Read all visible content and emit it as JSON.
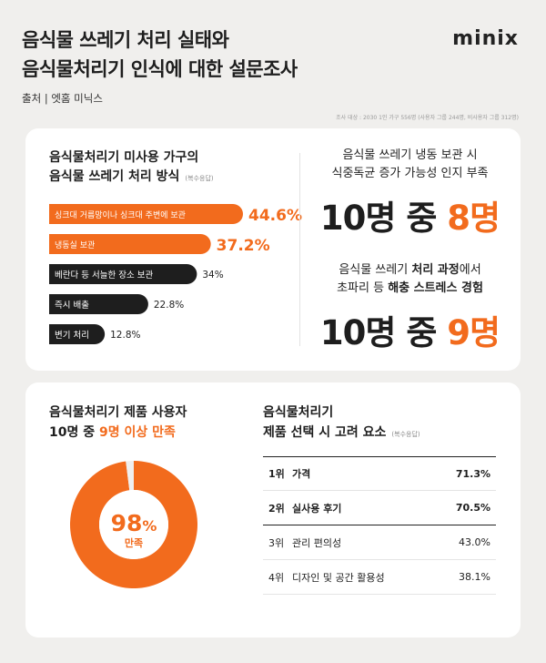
{
  "header": {
    "title_line1": "음식물 쓰레기 처리 실태와",
    "title_line2": "음식물처리기 인식에 대한 설문조사",
    "logo": "minix",
    "source": "출처 | 엣홈 미닉스",
    "note": "조사 대상 : 2030 1인 가구 556명 (사용자 그룹 244명, 비사용자 그룹 312명)"
  },
  "card1": {
    "title_line1": "음식물처리기 미사용 가구의",
    "title_line2": "음식물 쓰레기 처리 방식",
    "tag": "(복수응답)",
    "stat1": {
      "line1": "음식물 쓰레기 냉동 보관 시",
      "line2": "식중독균 증가 가능성 인지 부족",
      "big_a": "10명 중 ",
      "big_b": "8명"
    },
    "stat2": {
      "line1_a": "음식물 쓰레기 ",
      "line1_b": "처리 과정",
      "line1_c": "에서",
      "line2_a": "초파리 등 ",
      "line2_b": "해충 스트레스 경험",
      "big_a": "10명 중 ",
      "big_b": "9명"
    }
  },
  "card2": {
    "left_title_line1": "음식물처리기 제품 사용자",
    "left_title_a": "10명 중 ",
    "left_title_b": "9명 이상 만족",
    "right_title_line1": "음식물처리기",
    "right_title_line2": "제품 선택 시 고려 요소",
    "right_tag": "(복수응답)"
  },
  "chart_data": [
    {
      "type": "bar",
      "orientation": "horizontal",
      "categories": [
        "싱크대 거름망이나 싱크대 주변에 보관",
        "냉동실 보관",
        "베란다 등 서늘한 장소 보관",
        "즉시 배출",
        "변기 처리"
      ],
      "values": [
        44.6,
        37.2,
        34,
        22.8,
        12.8
      ],
      "labels": [
        "44.6%",
        "37.2%",
        "34%",
        "22.8%",
        "12.8%"
      ],
      "highlight_color": "#f26b1d",
      "dark_color": "#1e1e1e"
    },
    {
      "type": "pie",
      "style": "donut",
      "values": [
        98,
        2
      ],
      "center_value": "98",
      "center_unit": "%",
      "center_label": "만족",
      "colors": [
        "#f26b1d",
        "#efefef"
      ]
    },
    {
      "type": "table",
      "rows": [
        {
          "rank": "1위",
          "name": "가격",
          "value": "71.3%"
        },
        {
          "rank": "2위",
          "name": "실사용 후기",
          "value": "70.5%"
        },
        {
          "rank": "3위",
          "name": "관리 편의성",
          "value": "43.0%"
        },
        {
          "rank": "4위",
          "name": "디자인 및 공간 활용성",
          "value": "38.1%"
        }
      ]
    }
  ]
}
